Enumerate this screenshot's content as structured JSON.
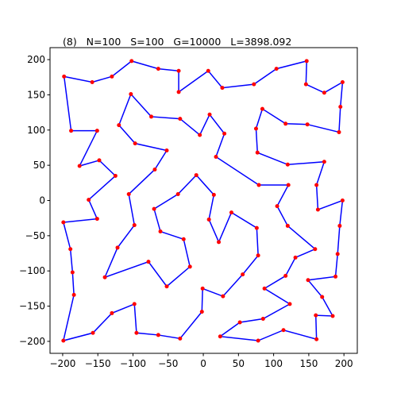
{
  "chart_data": {
    "type": "line",
    "title": "(8)   N=100   S=100   G=10000   L=3898.092",
    "closed": true,
    "line_color": "#0000ff",
    "marker_color": "#ff0000",
    "x": [
      -198,
      -158,
      -130,
      -102,
      -64,
      -35,
      -35,
      7,
      27,
      72,
      104,
      147,
      146,
      172,
      198,
      195,
      193,
      148,
      117,
      84,
      75,
      77,
      120,
      172,
      161,
      163,
      198,
      194,
      191,
      188,
      149,
      169,
      184,
      160,
      161,
      114,
      78,
      24,
      52,
      85,
      123,
      87,
      117,
      131,
      159,
      120,
      105,
      121,
      79,
      18,
      30,
      9,
      -5,
      -33,
      -74,
      -103,
      -120,
      -97,
      -52,
      -69,
      -106,
      -98,
      -122,
      -140,
      -78,
      -52,
      -19,
      -28,
      -61,
      -70,
      -36,
      -10,
      15,
      8,
      22,
      40,
      76,
      78,
      56,
      28,
      -1,
      -2,
      -33,
      -64,
      -95,
      -98,
      -130,
      -157,
      -199,
      -184,
      -186,
      -189,
      -199,
      -151,
      -163,
      -125,
      -148,
      -176,
      -151,
      -188
    ],
    "values": [
      176,
      168,
      176,
      198,
      187,
      184,
      154,
      184,
      160,
      165,
      187,
      198,
      165,
      153,
      168,
      133,
      97,
      108,
      109,
      130,
      102,
      68,
      51,
      55,
      22,
      -13,
      0,
      -36,
      -76,
      -108,
      -113,
      -137,
      -164,
      -163,
      -197,
      -184,
      -199,
      -193,
      -173,
      -168,
      -147,
      -125,
      -107,
      -81,
      -69,
      -36,
      -8,
      22,
      22,
      62,
      95,
      122,
      93,
      116,
      119,
      151,
      107,
      81,
      71,
      44,
      9,
      -35,
      -67,
      -109,
      -87,
      -122,
      -94,
      -55,
      -44,
      -12,
      9,
      36,
      8,
      -27,
      -59,
      -17,
      -39,
      -78,
      -105,
      -136,
      -125,
      -158,
      -196,
      -191,
      -188,
      -147,
      -160,
      -188,
      -199,
      -134,
      -102,
      -69,
      -31,
      -26,
      1,
      35,
      57,
      49,
      99,
      99
    ],
    "xlim": [
      -218,
      219
    ],
    "ylim": [
      -217,
      217
    ],
    "xticks": [
      {
        "value": -200,
        "label": "−200"
      },
      {
        "value": -150,
        "label": "−150"
      },
      {
        "value": -100,
        "label": "−100"
      },
      {
        "value": -50,
        "label": "−50"
      },
      0,
      50,
      100,
      150,
      200
    ],
    "yticks": [
      {
        "value": -200,
        "label": "−200"
      },
      {
        "value": -150,
        "label": "−150"
      },
      {
        "value": -100,
        "label": "−100"
      },
      {
        "value": -50,
        "label": "−50"
      },
      0,
      50,
      100,
      150,
      200
    ],
    "grid": false
  }
}
